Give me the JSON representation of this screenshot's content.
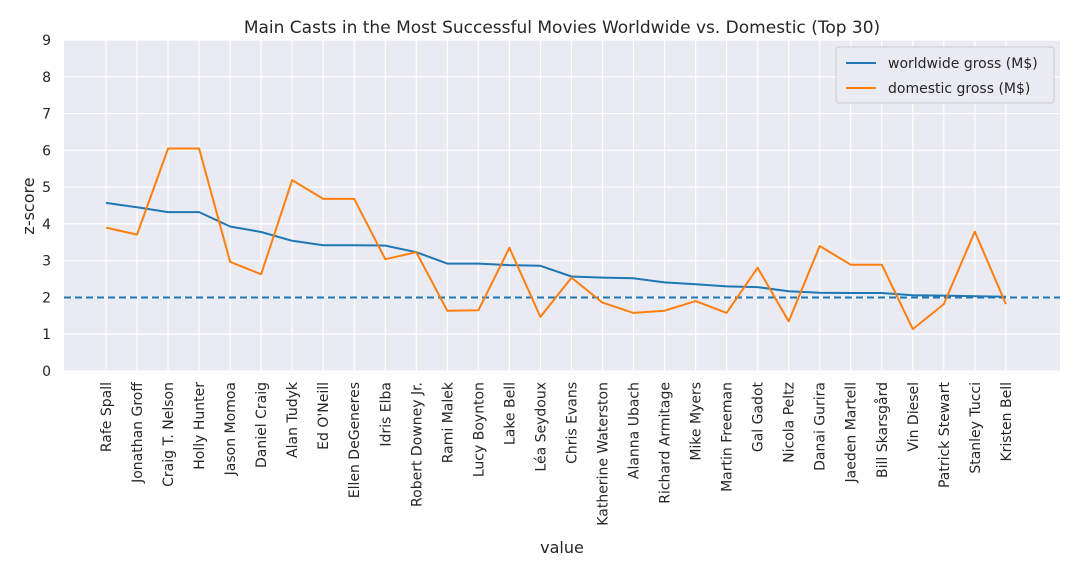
{
  "chart_data": {
    "type": "line",
    "title": "Main Casts in the Most Successful Movies Worldwide vs. Domestic (Top 30)",
    "xlabel": "value",
    "ylabel": "z-score",
    "ylim": [
      0,
      9
    ],
    "yticks": [
      0,
      1,
      2,
      3,
      4,
      5,
      6,
      7,
      8,
      9
    ],
    "grid": true,
    "legend_position": "top-right",
    "threshold": 2,
    "colors": {
      "background": "#eaeaf2",
      "grid": "#ffffff",
      "worldwide": "#1f77b4",
      "domestic": "#ff7f0e",
      "threshold": "#1f77b4"
    },
    "categories": [
      "Rafe Spall",
      "Jonathan Groff",
      "Craig T. Nelson",
      "Holly Hunter",
      "Jason Momoa",
      "Daniel Craig",
      "Alan Tudyk",
      "Ed O'Neill",
      "Ellen DeGeneres",
      "Idris Elba",
      "Robert Downey Jr.",
      "Rami Malek",
      "Lucy Boynton",
      "Lake Bell",
      "Léa Seydoux",
      "Chris Evans",
      "Katherine Waterston",
      "Alanna Ubach",
      "Richard Armitage",
      "Mike Myers",
      "Martin Freeman",
      "Gal Gadot",
      "Nicola Peltz",
      "Danai Gurira",
      "Jaeden Martell",
      "Bill Skarsgård",
      "Vin Diesel",
      "Patrick Stewart",
      "Stanley Tucci",
      "Kristen Bell"
    ],
    "series": [
      {
        "name": "worldwide gross (M$)",
        "values": [
          4.57,
          4.45,
          4.32,
          4.32,
          3.93,
          3.78,
          3.54,
          3.42,
          3.42,
          3.41,
          3.23,
          2.92,
          2.92,
          2.88,
          2.86,
          2.57,
          2.54,
          2.52,
          2.41,
          2.36,
          2.3,
          2.28,
          2.17,
          2.13,
          2.12,
          2.12,
          2.06,
          2.05,
          2.03,
          2.02
        ]
      },
      {
        "name": "domestic gross (M$)",
        "values": [
          3.9,
          3.71,
          6.05,
          6.05,
          2.97,
          2.63,
          5.19,
          4.68,
          4.68,
          3.04,
          3.23,
          1.64,
          1.65,
          3.35,
          1.47,
          2.54,
          1.86,
          1.58,
          1.64,
          1.9,
          1.58,
          2.81,
          1.35,
          3.4,
          2.89,
          2.89,
          1.14,
          1.82,
          3.79,
          1.82
        ]
      }
    ]
  }
}
